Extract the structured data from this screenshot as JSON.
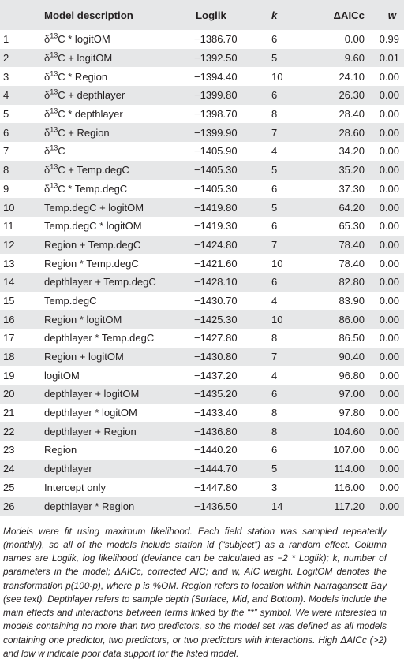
{
  "header": {
    "num": "",
    "model": "Model description",
    "loglik": "Loglik",
    "k": "k",
    "aicc": "ΔAICc",
    "w": "w"
  },
  "rows": [
    {
      "num": "1",
      "pre": "δ",
      "sup": "13",
      "post": "C * logitOM",
      "loglik": "−1386.70",
      "k": "6",
      "aicc": "0.00",
      "w": "0.99"
    },
    {
      "num": "2",
      "pre": "δ",
      "sup": "13",
      "post": "C + logitOM",
      "loglik": "−1392.50",
      "k": "5",
      "aicc": "9.60",
      "w": "0.01"
    },
    {
      "num": "3",
      "pre": "δ",
      "sup": "13",
      "post": "C * Region",
      "loglik": "−1394.40",
      "k": "10",
      "aicc": "24.10",
      "w": "0.00"
    },
    {
      "num": "4",
      "pre": "δ",
      "sup": "13",
      "post": "C + depthlayer",
      "loglik": "−1399.80",
      "k": "6",
      "aicc": "26.30",
      "w": "0.00"
    },
    {
      "num": "5",
      "pre": "δ",
      "sup": "13",
      "post": "C * depthlayer",
      "loglik": "−1398.70",
      "k": "8",
      "aicc": "28.40",
      "w": "0.00"
    },
    {
      "num": "6",
      "pre": "δ",
      "sup": "13",
      "post": "C + Region",
      "loglik": "−1399.90",
      "k": "7",
      "aicc": "28.60",
      "w": "0.00"
    },
    {
      "num": "7",
      "pre": "δ",
      "sup": "13",
      "post": "C",
      "loglik": "−1405.90",
      "k": "4",
      "aicc": "34.20",
      "w": "0.00"
    },
    {
      "num": "8",
      "pre": "δ",
      "sup": "13",
      "post": "C + Temp.degC",
      "loglik": "−1405.30",
      "k": "5",
      "aicc": "35.20",
      "w": "0.00"
    },
    {
      "num": "9",
      "pre": "δ",
      "sup": "13",
      "post": "C * Temp.degC",
      "loglik": "−1405.30",
      "k": "6",
      "aicc": "37.30",
      "w": "0.00"
    },
    {
      "num": "10",
      "pre": "Temp.degC + logitOM",
      "sup": "",
      "post": "",
      "loglik": "−1419.80",
      "k": "5",
      "aicc": "64.20",
      "w": "0.00"
    },
    {
      "num": "11",
      "pre": "Temp.degC * logitOM",
      "sup": "",
      "post": "",
      "loglik": "−1419.30",
      "k": "6",
      "aicc": "65.30",
      "w": "0.00"
    },
    {
      "num": "12",
      "pre": "Region + Temp.degC",
      "sup": "",
      "post": "",
      "loglik": "−1424.80",
      "k": "7",
      "aicc": "78.40",
      "w": "0.00"
    },
    {
      "num": "13",
      "pre": "Region * Temp.degC",
      "sup": "",
      "post": "",
      "loglik": "−1421.60",
      "k": "10",
      "aicc": "78.40",
      "w": "0.00"
    },
    {
      "num": "14",
      "pre": "depthlayer + Temp.degC",
      "sup": "",
      "post": "",
      "loglik": "−1428.10",
      "k": "6",
      "aicc": "82.80",
      "w": "0.00"
    },
    {
      "num": "15",
      "pre": "Temp.degC",
      "sup": "",
      "post": "",
      "loglik": "−1430.70",
      "k": "4",
      "aicc": "83.90",
      "w": "0.00"
    },
    {
      "num": "16",
      "pre": "Region * logitOM",
      "sup": "",
      "post": "",
      "loglik": "−1425.30",
      "k": "10",
      "aicc": "86.00",
      "w": "0.00"
    },
    {
      "num": "17",
      "pre": "depthlayer * Temp.degC",
      "sup": "",
      "post": "",
      "loglik": "−1427.80",
      "k": "8",
      "aicc": "86.50",
      "w": "0.00"
    },
    {
      "num": "18",
      "pre": "Region + logitOM",
      "sup": "",
      "post": "",
      "loglik": "−1430.80",
      "k": "7",
      "aicc": "90.40",
      "w": "0.00"
    },
    {
      "num": "19",
      "pre": "logitOM",
      "sup": "",
      "post": "",
      "loglik": "−1437.20",
      "k": "4",
      "aicc": "96.80",
      "w": "0.00"
    },
    {
      "num": "20",
      "pre": "depthlayer + logitOM",
      "sup": "",
      "post": "",
      "loglik": "−1435.20",
      "k": "6",
      "aicc": "97.00",
      "w": "0.00"
    },
    {
      "num": "21",
      "pre": "depthlayer * logitOM",
      "sup": "",
      "post": "",
      "loglik": "−1433.40",
      "k": "8",
      "aicc": "97.80",
      "w": "0.00"
    },
    {
      "num": "22",
      "pre": "depthlayer + Region",
      "sup": "",
      "post": "",
      "loglik": "−1436.80",
      "k": "8",
      "aicc": "104.60",
      "w": "0.00"
    },
    {
      "num": "23",
      "pre": "Region",
      "sup": "",
      "post": "",
      "loglik": "−1440.20",
      "k": "6",
      "aicc": "107.00",
      "w": "0.00"
    },
    {
      "num": "24",
      "pre": "depthlayer",
      "sup": "",
      "post": "",
      "loglik": "−1444.70",
      "k": "5",
      "aicc": "114.00",
      "w": "0.00"
    },
    {
      "num": "25",
      "pre": "Intercept only",
      "sup": "",
      "post": "",
      "loglik": "−1447.80",
      "k": "3",
      "aicc": "116.00",
      "w": "0.00"
    },
    {
      "num": "26",
      "pre": "depthlayer * Region",
      "sup": "",
      "post": "",
      "loglik": "−1436.50",
      "k": "14",
      "aicc": "117.20",
      "w": "0.00"
    }
  ],
  "footnote": "Models were fit using maximum likelihood. Each field station was sampled repeatedly (monthly), so all of the models include station id (“subject”) as a random effect. Column names are Loglik, log likelihood (deviance can be calculated as −2 * Loglik); k, number of parameters in the model; ΔAICc, corrected AIC; and w, AIC weight. LogitOM denotes the transformation p(100-p), where p is %OM. Region refers to location within Narragansett Bay (see text). Depthlayer refers to sample depth (Surface, Mid, and Bottom). Models include the main effects and interactions between terms linked by the “*” symbol. We were interested in models containing no more than two predictors, so the model set was defined as all models containing one predictor, two predictors, or two predictors with interactions. High ΔAICc (>2) and low w indicate poor data support for the listed model."
}
